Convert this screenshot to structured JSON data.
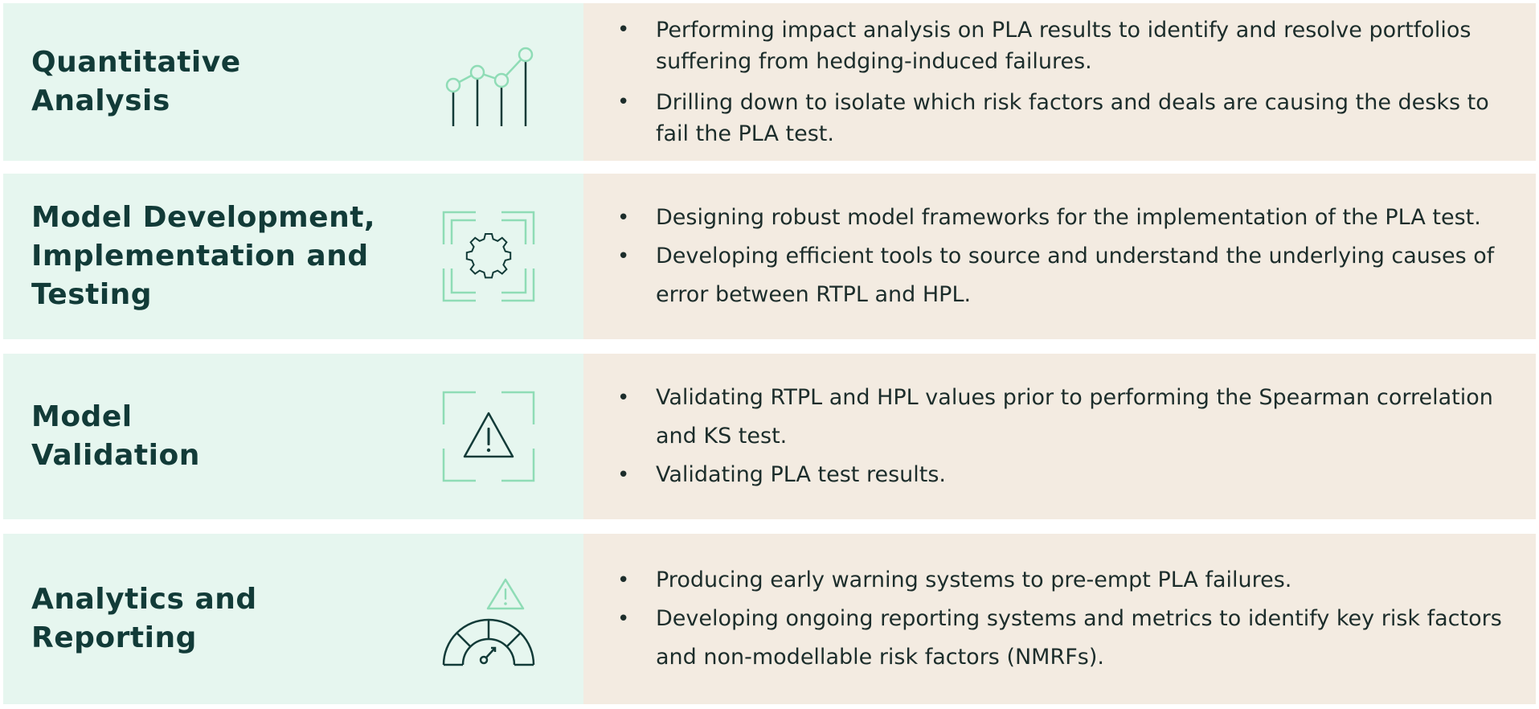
{
  "rows": [
    {
      "title_lines": [
        "Quantitative",
        "Analysis"
      ],
      "icon": "bar-line-chart-icon",
      "bullets": [
        "Performing impact analysis on PLA results to identify and resolve portfolios suffering from hedging-induced failures.",
        "Drilling down to isolate which risk factors and deals are causing the desks to fail the PLA test."
      ]
    },
    {
      "title_lines": [
        "Model Development,",
        "Implementation and",
        "Testing"
      ],
      "icon": "gear-frame-icon",
      "bullets": [
        "Designing robust model frameworks for the implementation of the PLA test.",
        "Developing efficient tools to source and understand the underlying causes of error between RTPL and HPL."
      ]
    },
    {
      "title_lines": [
        "Model",
        "Validation"
      ],
      "icon": "warning-frame-icon",
      "bullets": [
        "Validating RTPL and HPL values prior to performing the Spearman correlation and KS test.",
        "Validating PLA test results."
      ]
    },
    {
      "title_lines": [
        "Analytics and",
        "Reporting"
      ],
      "icon": "gauge-warning-icon",
      "bullets": [
        "Producing early warning systems to pre-empt PLA failures.",
        "Developing ongoing reporting systems and metrics to identify key risk factors and non-modellable risk factors (NMRFs)."
      ]
    }
  ],
  "colors": {
    "left_panel": "#e6f6ef",
    "right_panel": "#f3ebe1",
    "title_text": "#123b38",
    "body_text": "#1c2d2b",
    "icon_dark": "#123b38",
    "icon_accent": "#8fdcb6"
  },
  "bullet_glyph": "•"
}
